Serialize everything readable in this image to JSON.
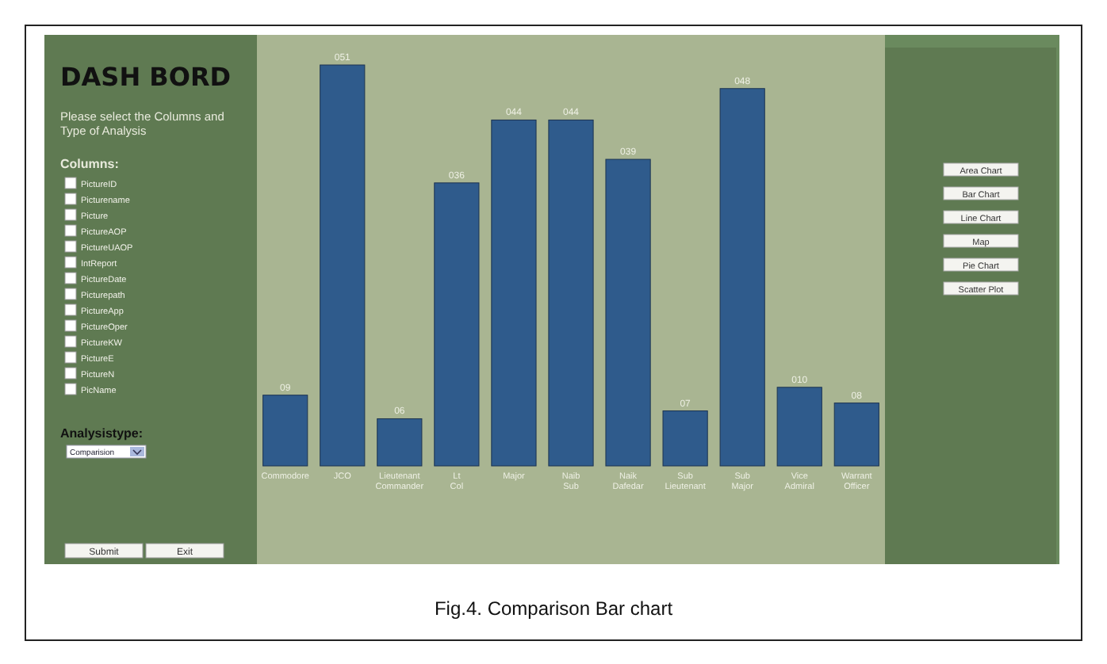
{
  "chart_data": [
    {
      "type": "other",
      "title": "DASH BORD",
      "subtitle": "Please select the Columns and Type of Analysis",
      "annotations": [
        "Columns:",
        "PictureID",
        "Picturename",
        "Picture",
        "PictureAOP",
        "PictureUAOP",
        "IntReport",
        "PictureDate",
        "Picturepath",
        "PictureApp",
        "PictureOper",
        "PictureKW",
        "PictureE",
        "PictureN",
        "PicName",
        "Analysistype:",
        "Comparision",
        "Submit",
        "Exit"
      ]
    },
    {
      "type": "bar",
      "categories": [
        "Commodore",
        "JCO",
        "Lieutenant Commander",
        "Lt Col",
        "Major",
        "Naib Sub",
        "Naik Dafedar",
        "Sub Lieutenant",
        "Sub Major",
        "Vice Admiral",
        "Warrant Officer"
      ],
      "values": [
        9,
        51,
        6,
        36,
        44,
        44,
        39,
        7,
        48,
        10,
        8
      ],
      "value_labels": [
        "09",
        "051",
        "06",
        "036",
        "044",
        "044",
        "039",
        "07",
        "048",
        "010",
        "08"
      ],
      "color": "#2f5b8c",
      "annotations": [
        "Fig.4. Comparison Bar chart"
      ]
    },
    {
      "type": "other",
      "annotations": [
        "Area Chart",
        "Bar Chart",
        "Line Chart",
        "Map",
        "Pie Chart",
        "Scatter Plot"
      ]
    }
  ]
}
